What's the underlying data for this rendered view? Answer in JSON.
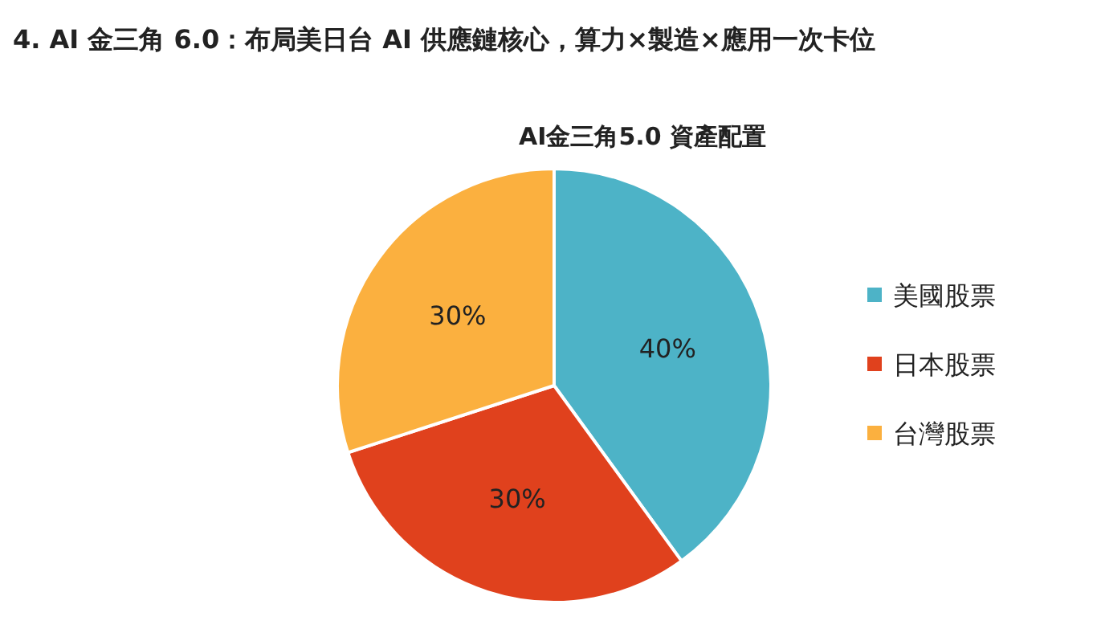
{
  "chart_data": {
    "type": "pie",
    "title": "4.  AI 金三角 6.0：布局美日台 AI 供應鏈核心，算力×製造×應用一次卡位",
    "subtitle": "AI金三角5.0 資產配置",
    "categories": [
      "美國股票",
      "日本股票",
      "台灣股票"
    ],
    "values": [
      40,
      30,
      30
    ],
    "colors": [
      "#4db3c7",
      "#e0411d",
      "#fbb03f"
    ],
    "value_labels": [
      "40%",
      "30%",
      "30%"
    ],
    "legend": "right"
  }
}
